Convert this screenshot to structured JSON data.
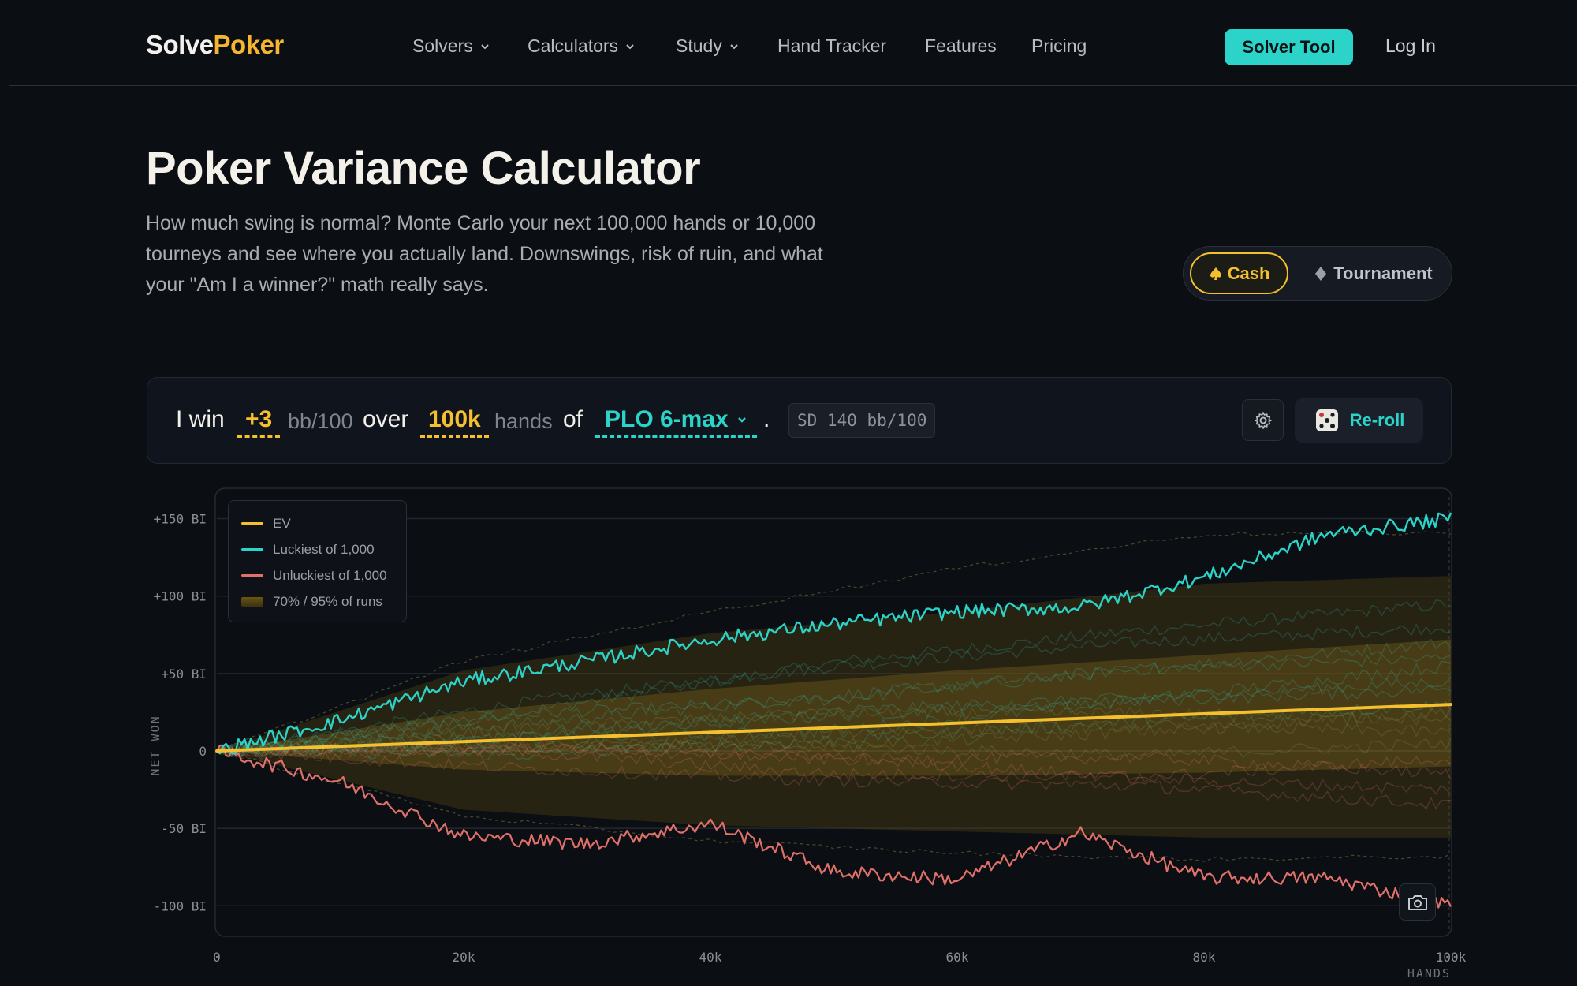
{
  "nav": {
    "logo_a": "Solve",
    "logo_b": "Poker",
    "items": [
      {
        "label": "Solvers",
        "dropdown": true
      },
      {
        "label": "Calculators",
        "dropdown": true
      },
      {
        "label": "Study",
        "dropdown": true
      },
      {
        "label": "Hand Tracker",
        "dropdown": false
      },
      {
        "label": "Features",
        "dropdown": false
      },
      {
        "label": "Pricing",
        "dropdown": false
      }
    ],
    "cta": "Solver Tool",
    "login": "Log In"
  },
  "hero": {
    "title": "Poker Variance Calculator",
    "subtitle": "How much swing is normal? Monte Carlo your next 100,000 hands or 10,000 tourneys and see where you actually land. Downswings, risk of ruin, and what your \"Am I a winner?\" math really says."
  },
  "mode_toggle": {
    "cash": "Cash",
    "tournament": "Tournament",
    "selected": "Cash"
  },
  "sentence": {
    "i_win": "I win",
    "winrate": "+3",
    "winrate_unit": "bb/100",
    "over": "over",
    "hands": "100k",
    "hands_unit": "hands",
    "of": "of",
    "game": "PLO 6-max",
    "period": ".",
    "sd": "SD 140 bb/100",
    "reroll": "Re-roll"
  },
  "colors": {
    "accent_yellow": "#f5c02e",
    "accent_teal": "#2bd3c8",
    "unlucky_red": "#e0706a",
    "background": "#0b0e13"
  },
  "chart_data": {
    "type": "line",
    "ylabel": "NET WON",
    "xlabel": "HANDS",
    "x_ticks": [
      "0",
      "20k",
      "40k",
      "60k",
      "80k",
      "100k"
    ],
    "y_ticks": [
      "+150 BI",
      "+100 BI",
      "+50 BI",
      "0",
      "-50 BI",
      "-100 BI"
    ],
    "xlim": [
      0,
      100000
    ],
    "ylim": [
      -110,
      160
    ],
    "legend": [
      {
        "label": "EV",
        "color": "#f5c02e",
        "kind": "line"
      },
      {
        "label": "Luckiest of 1,000",
        "color": "#2bd3c8",
        "kind": "line"
      },
      {
        "label": "Unluckiest of 1,000",
        "color": "#e0706a",
        "kind": "line"
      },
      {
        "label": "70% / 95% of runs",
        "color": "#6b5512",
        "kind": "band"
      }
    ],
    "legend_position": "top-left",
    "grid": true,
    "series": [
      {
        "name": "EV",
        "x": [
          0,
          100000
        ],
        "y": [
          0,
          30
        ]
      },
      {
        "name": "Luckiest of 1,000",
        "x": [
          0,
          10000,
          20000,
          30000,
          40000,
          50000,
          60000,
          70000,
          80000,
          90000,
          100000
        ],
        "y": [
          0,
          20,
          45,
          58,
          72,
          82,
          90,
          93,
          112,
          140,
          150
        ]
      },
      {
        "name": "Unluckiest of 1,000",
        "x": [
          0,
          10000,
          20000,
          30000,
          40000,
          50000,
          60000,
          70000,
          80000,
          90000,
          100000
        ],
        "y": [
          0,
          -20,
          -55,
          -60,
          -47,
          -78,
          -83,
          -53,
          -82,
          -82,
          -100
        ]
      },
      {
        "name": "95% upper",
        "x": [
          0,
          20000,
          40000,
          60000,
          80000,
          100000
        ],
        "y": [
          0,
          52,
          76,
          90,
          108,
          113
        ]
      },
      {
        "name": "95% lower",
        "x": [
          0,
          20000,
          40000,
          60000,
          80000,
          100000
        ],
        "y": [
          0,
          -38,
          -48,
          -52,
          -56,
          -56
        ]
      },
      {
        "name": "70% upper",
        "x": [
          0,
          20000,
          40000,
          60000,
          80000,
          100000
        ],
        "y": [
          0,
          25,
          40,
          52,
          62,
          72
        ]
      },
      {
        "name": "70% lower",
        "x": [
          0,
          20000,
          40000,
          60000,
          80000,
          100000
        ],
        "y": [
          0,
          -12,
          -16,
          -16,
          -14,
          -10
        ]
      }
    ]
  }
}
